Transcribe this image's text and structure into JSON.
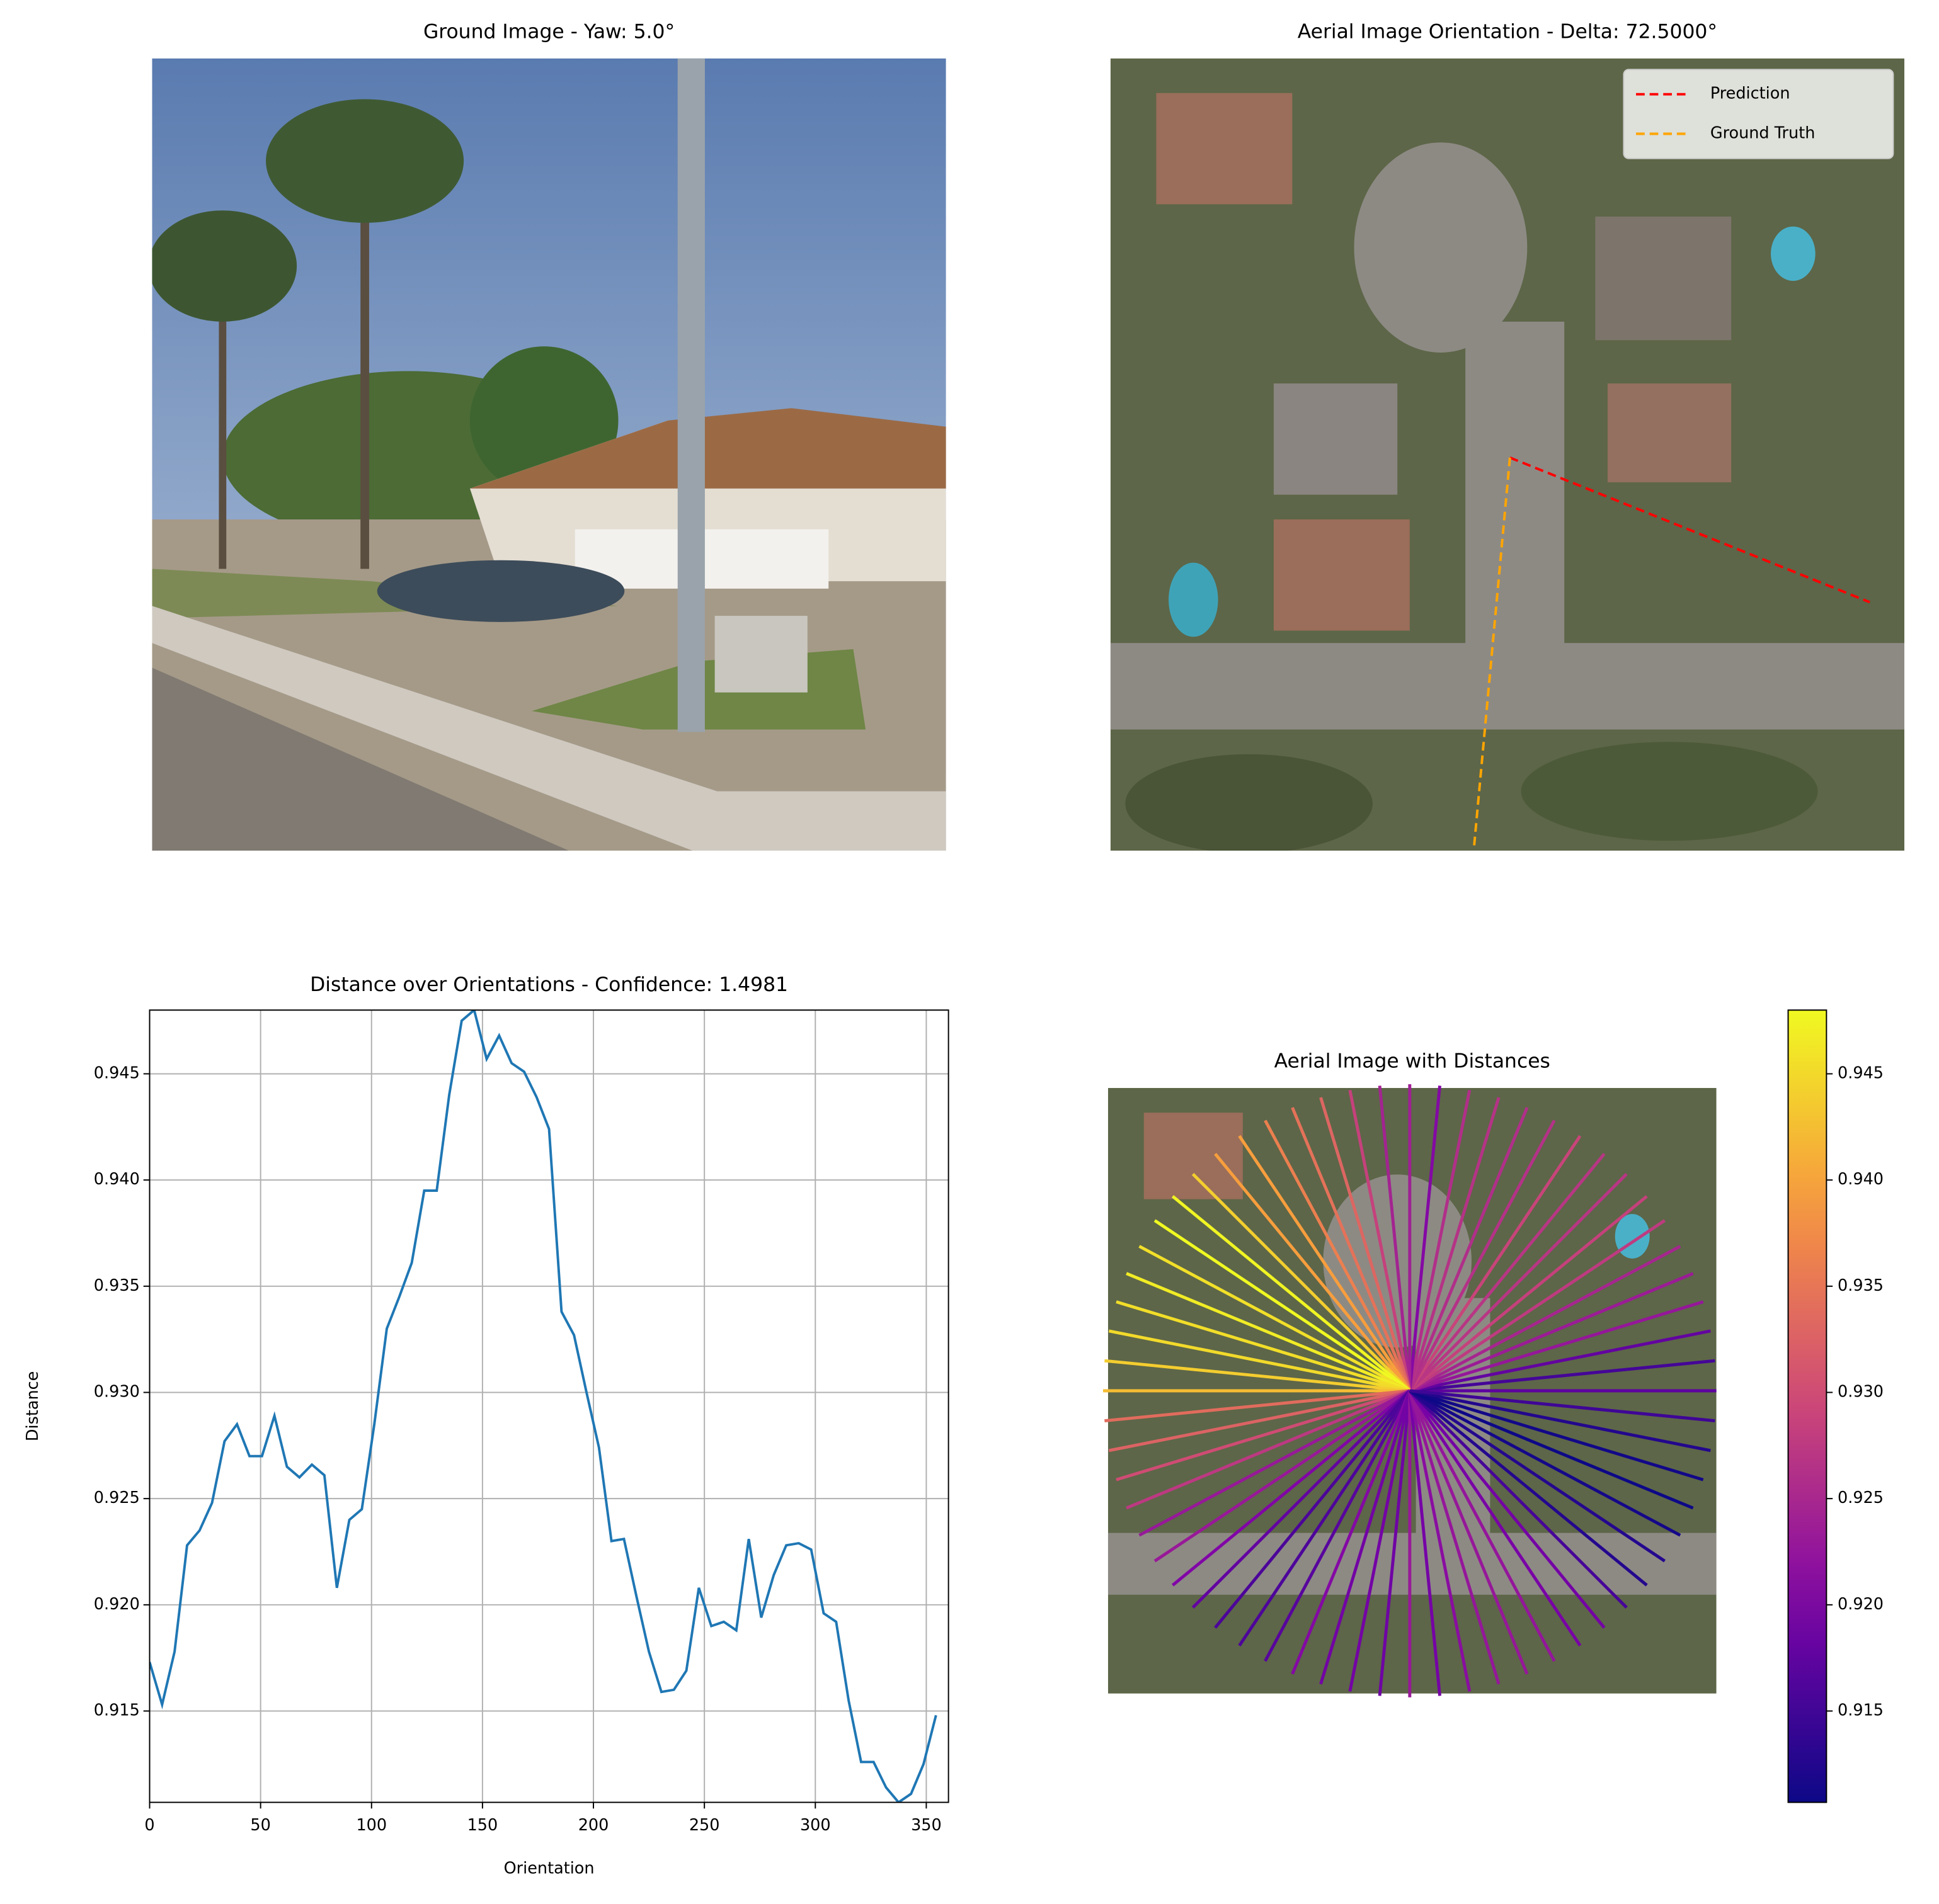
{
  "chart_data": [
    {
      "type": "image",
      "title": "Ground Image - Yaw: 5.0°"
    },
    {
      "type": "image",
      "title": "Aerial Image Orientation - Delta: 72.5000°",
      "series": [
        {
          "name": "Prediction",
          "color": "#ff0000"
        },
        {
          "name": "Ground Truth",
          "color": "#ffa500"
        }
      ]
    },
    {
      "type": "line",
      "title": "Distance over Orientations - Confidence: 1.4981",
      "xlabel": "Orientation",
      "ylabel": "Distance",
      "color": "#1f77b4",
      "grid": true,
      "x": [
        0,
        5.625,
        11.25,
        16.875,
        22.5,
        28.125,
        33.75,
        39.375,
        45,
        50.625,
        56.25,
        61.875,
        67.5,
        73.125,
        78.75,
        84.375,
        90,
        95.625,
        101.25,
        106.875,
        112.5,
        118.125,
        123.75,
        129.375,
        135,
        140.625,
        146.25,
        151.875,
        157.5,
        163.125,
        168.75,
        174.375,
        180,
        185.625,
        191.25,
        196.875,
        202.5,
        208.125,
        213.75,
        219.375,
        225,
        230.625,
        236.25,
        241.875,
        247.5,
        253.125,
        258.75,
        264.375,
        270,
        275.625,
        281.25,
        286.875,
        292.5,
        298.125,
        303.75,
        309.375,
        315,
        320.625,
        326.25,
        331.875,
        337.5,
        343.125,
        348.75,
        354.375
      ],
      "values": [
        0.9173,
        0.9153,
        0.9178,
        0.9228,
        0.9235,
        0.9248,
        0.9277,
        0.9285,
        0.927,
        0.927,
        0.9289,
        0.9265,
        0.926,
        0.9266,
        0.9261,
        0.9208,
        0.924,
        0.9245,
        0.9285,
        0.933,
        0.9345,
        0.9361,
        0.9395,
        0.9395,
        0.944,
        0.9475,
        0.948,
        0.9457,
        0.9468,
        0.9455,
        0.9451,
        0.9439,
        0.9424,
        0.9338,
        0.9327,
        0.93,
        0.9274,
        0.923,
        0.9231,
        0.9204,
        0.9178,
        0.9159,
        0.916,
        0.9169,
        0.9208,
        0.919,
        0.9192,
        0.9188,
        0.9231,
        0.9194,
        0.9214,
        0.9228,
        0.9229,
        0.9226,
        0.9196,
        0.9192,
        0.9155,
        0.9126,
        0.9126,
        0.9114,
        0.9107,
        0.9111,
        0.9125,
        0.9148
      ],
      "xlim": [
        0,
        360
      ],
      "xticks": [
        0,
        50,
        100,
        150,
        200,
        250,
        300,
        350
      ],
      "ylim": [
        0.9107,
        0.948
      ],
      "yticks": [
        0.915,
        {
          "value": 0.92,
          "label": "0.920"
        },
        0.925,
        {
          "value": 0.93,
          "label": "0.930"
        },
        0.935,
        {
          "value": 0.94,
          "label": "0.940"
        },
        0.945
      ]
    },
    {
      "type": "radial",
      "title": "Aerial Image with Distances",
      "colormap": "plasma",
      "colorbar": {
        "lim": [
          0.9107,
          0.948
        ],
        "ticks": [
          0.915,
          {
            "value": 0.92,
            "label": "0.920"
          },
          0.925,
          {
            "value": 0.93,
            "label": "0.930"
          },
          0.935,
          {
            "value": 0.94,
            "label": "0.940"
          },
          0.945
        ]
      }
    }
  ]
}
